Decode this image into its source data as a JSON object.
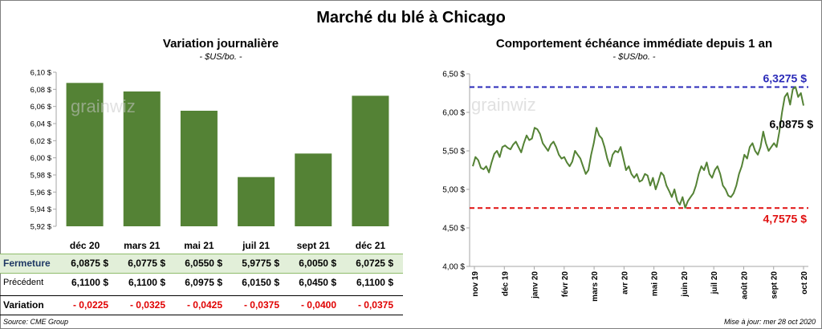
{
  "title": "Marché du blé à Chicago",
  "left_panel": {
    "title": "Variation journalière",
    "unit": "- $US/bo. -",
    "row_labels": {
      "close": "Fermeture",
      "previous": "Précédent",
      "variation": "Variation"
    },
    "close_values": [
      "6,0875  $",
      "6,0775  $",
      "6,0550  $",
      "5,9775  $",
      "6,0050  $",
      "6,0725  $"
    ],
    "previous_values": [
      "6,1100  $",
      "6,1100  $",
      "6,0975  $",
      "6,0150  $",
      "6,0450  $",
      "6,1100  $"
    ],
    "variation_values": [
      "- 0,0225",
      "- 0,0325",
      "- 0,0425",
      "- 0,0375",
      "- 0,0400",
      "- 0,0375"
    ]
  },
  "right_panel": {
    "title": "Comportement  échéance immédiate depuis 1 an",
    "unit": "- $US/bo. -",
    "max_label": "6,3275 $",
    "min_label": "4,7575 $",
    "last_label": "6,0875 $"
  },
  "watermark": "grainwiz",
  "source": "Source: CME Group",
  "updated": "Mise à jour: mer 28 oct 2020",
  "colors": {
    "bar": "#548235",
    "line": "#548235",
    "max_line": "#2a2ab8",
    "min_line": "#e01010",
    "close_row": "#e2efd9",
    "negative": "#e00000"
  },
  "chart_data": [
    {
      "type": "bar",
      "categories": [
        "déc 20",
        "mars 21",
        "mai 21",
        "juil 21",
        "sept 21",
        "déc 21"
      ],
      "values": [
        6.0875,
        6.0775,
        6.055,
        5.9775,
        6.005,
        6.0725
      ],
      "ylim": [
        5.92,
        6.1
      ],
      "yticks": [
        "6,10 $",
        "6,08 $",
        "6,06 $",
        "6,04 $",
        "6,02 $",
        "6,00 $",
        "5,98 $",
        "5,96 $",
        "5,94 $",
        "5,92 $"
      ],
      "grid": false
    },
    {
      "type": "line",
      "ylim": [
        4.0,
        6.5
      ],
      "yticks": [
        "6,50 $",
        "6,00 $",
        "5,50 $",
        "5,00 $",
        "4,50 $",
        "4,00 $"
      ],
      "xticks": [
        "nov 19",
        "déc 19",
        "janv 20",
        "févr 20",
        "mars 20",
        "avr 20",
        "mai 20",
        "juin 20",
        "juil 20",
        "août 20",
        "sept 20",
        "oct 20"
      ],
      "max_value": 6.3275,
      "min_value": 4.7575,
      "last_value": 6.0875,
      "series": [
        {
          "values": [
            5.3,
            5.42,
            5.38,
            5.28,
            5.26,
            5.3,
            5.22,
            5.35,
            5.46,
            5.5,
            5.42,
            5.55,
            5.57,
            5.54,
            5.52,
            5.58,
            5.62,
            5.55,
            5.48,
            5.6,
            5.7,
            5.64,
            5.66,
            5.8,
            5.78,
            5.72,
            5.6,
            5.55,
            5.5,
            5.58,
            5.62,
            5.55,
            5.45,
            5.4,
            5.42,
            5.35,
            5.3,
            5.36,
            5.5,
            5.45,
            5.4,
            5.3,
            5.2,
            5.25,
            5.45,
            5.6,
            5.8,
            5.7,
            5.66,
            5.55,
            5.4,
            5.3,
            5.45,
            5.5,
            5.48,
            5.55,
            5.4,
            5.25,
            5.3,
            5.2,
            5.15,
            5.2,
            5.1,
            5.12,
            5.2,
            5.18,
            5.05,
            5.15,
            5.0,
            5.1,
            5.22,
            5.18,
            5.05,
            4.98,
            4.9,
            5.0,
            4.85,
            4.8,
            4.9,
            4.76,
            4.85,
            4.9,
            4.95,
            5.05,
            5.2,
            5.3,
            5.25,
            5.35,
            5.2,
            5.15,
            5.25,
            5.3,
            5.2,
            5.05,
            5.0,
            4.92,
            4.9,
            4.95,
            5.05,
            5.2,
            5.3,
            5.45,
            5.4,
            5.55,
            5.6,
            5.5,
            5.45,
            5.55,
            5.75,
            5.6,
            5.5,
            5.55,
            5.6,
            5.55,
            5.75,
            6.0,
            6.2,
            6.25,
            6.1,
            6.3,
            6.33,
            6.2,
            6.25,
            6.0875
          ]
        }
      ]
    }
  ]
}
